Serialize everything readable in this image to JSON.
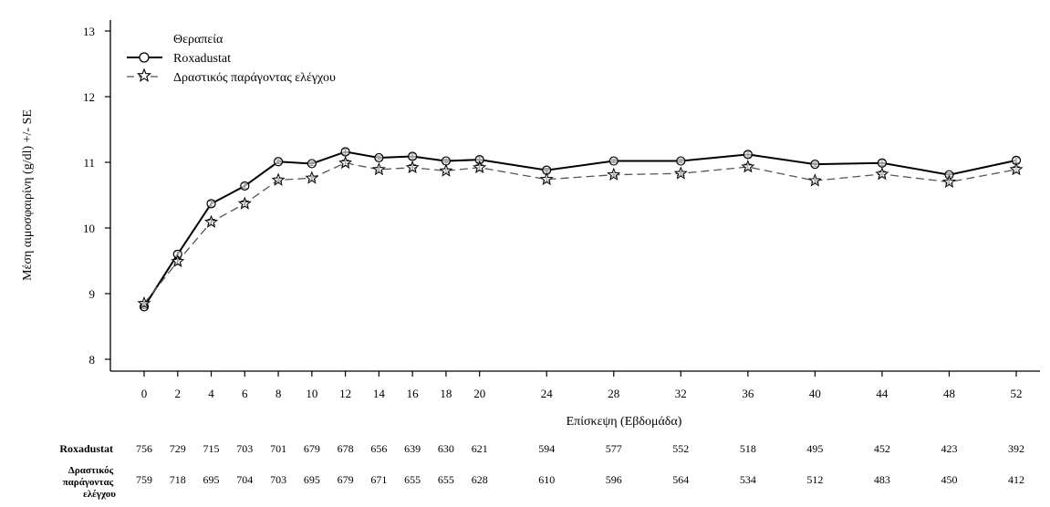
{
  "chart_data": {
    "type": "line",
    "xlabel": "Επίσκεψη (Εβδομάδα)",
    "ylabel": "Μέση αιμοσφαιρίνη (g/dl) +/- SE",
    "ylim": [
      8,
      13
    ],
    "yticks": [
      8,
      9,
      10,
      11,
      12,
      13
    ],
    "x": [
      0,
      2,
      4,
      6,
      8,
      10,
      12,
      14,
      16,
      18,
      20,
      24,
      28,
      32,
      36,
      40,
      44,
      48,
      52
    ],
    "legend": {
      "title": "Θεραπεία",
      "position": "top-left"
    },
    "series": [
      {
        "name": "Roxadustat",
        "marker": "circle",
        "line_style": "solid",
        "values": [
          8.8,
          9.6,
          10.37,
          10.64,
          11.01,
          10.98,
          11.16,
          11.07,
          11.09,
          11.02,
          11.04,
          10.88,
          11.02,
          11.02,
          11.12,
          10.97,
          10.99,
          10.81,
          11.03
        ],
        "se": [
          0.03,
          0.04,
          0.04,
          0.04,
          0.03,
          0.03,
          0.04,
          0.03,
          0.04,
          0.03,
          0.04,
          0.03,
          0.03,
          0.03,
          0.04,
          0.03,
          0.04,
          0.03,
          0.04
        ]
      },
      {
        "name": "Δραστικός παράγοντας ελέγχου",
        "marker": "star",
        "line_style": "dashed",
        "values": [
          8.85,
          9.49,
          10.09,
          10.37,
          10.73,
          10.76,
          10.99,
          10.89,
          10.92,
          10.87,
          10.92,
          10.74,
          10.81,
          10.83,
          10.93,
          10.72,
          10.82,
          10.7,
          10.89
        ],
        "se": [
          0.03,
          0.04,
          0.04,
          0.04,
          0.03,
          0.03,
          0.04,
          0.03,
          0.04,
          0.03,
          0.04,
          0.03,
          0.03,
          0.03,
          0.04,
          0.03,
          0.04,
          0.03,
          0.04
        ]
      }
    ]
  },
  "risk_table": {
    "rows": [
      {
        "label": "Roxadustat",
        "values": [
          "756",
          "729",
          "715",
          "703",
          "701",
          "679",
          "678",
          "656",
          "639",
          "630",
          "621",
          "594",
          "577",
          "552",
          "518",
          "495",
          "452",
          "423",
          "392"
        ]
      },
      {
        "label_lines": [
          "Δραστικός",
          "παράγοντας",
          "ελέγχου"
        ],
        "values": [
          "759",
          "718",
          "695",
          "704",
          "703",
          "695",
          "679",
          "671",
          "655",
          "655",
          "628",
          "610",
          "596",
          "564",
          "534",
          "512",
          "483",
          "450",
          "412"
        ]
      }
    ]
  }
}
